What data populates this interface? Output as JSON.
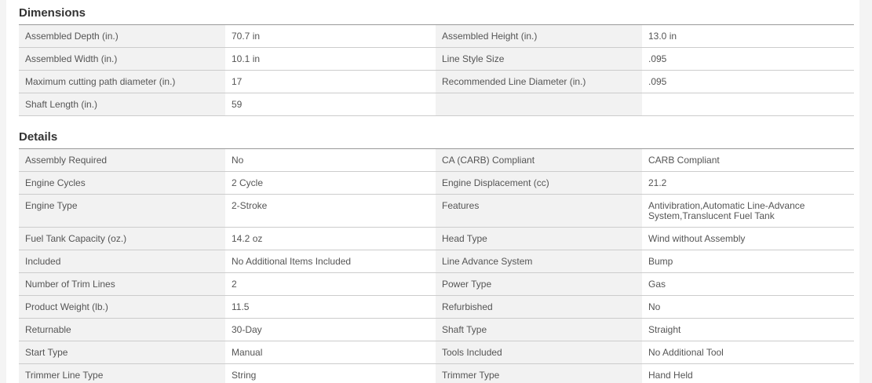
{
  "page": {
    "background_color": "#f4f4f4",
    "panel_color": "#ffffff",
    "table_top_border_color": "#999999",
    "row_border_color": "#cccccc",
    "label_cell_color": "#f2f2f2",
    "text_color": "#555555",
    "title_color": "#333333"
  },
  "sections": [
    {
      "title": "Dimensions",
      "rows": [
        {
          "left_label": "Assembled Depth (in.)",
          "left_value": "70.7 in",
          "right_label": "Assembled Height (in.)",
          "right_value": "13.0 in"
        },
        {
          "left_label": "Assembled Width (in.)",
          "left_value": "10.1 in",
          "right_label": "Line Style Size",
          "right_value": ".095"
        },
        {
          "left_label": "Maximum cutting path diameter (in.)",
          "left_value": "17",
          "right_label": "Recommended Line Diameter (in.)",
          "right_value": ".095"
        },
        {
          "left_label": "Shaft Length (in.)",
          "left_value": "59",
          "right_label": "",
          "right_value": ""
        }
      ]
    },
    {
      "title": "Details",
      "rows": [
        {
          "left_label": "Assembly Required",
          "left_value": "No",
          "right_label": "CA (CARB) Compliant",
          "right_value": "CARB Compliant"
        },
        {
          "left_label": "Engine Cycles",
          "left_value": "2 Cycle",
          "right_label": "Engine Displacement (cc)",
          "right_value": "21.2"
        },
        {
          "left_label": "Engine Type",
          "left_value": "2-Stroke",
          "right_label": "Features",
          "right_value": "Antivibration,Automatic Line-Advance System,Translucent Fuel Tank"
        },
        {
          "left_label": "Fuel Tank Capacity (oz.)",
          "left_value": "14.2 oz",
          "right_label": "Head Type",
          "right_value": "Wind without Assembly"
        },
        {
          "left_label": "Included",
          "left_value": "No Additional Items Included",
          "right_label": "Line Advance System",
          "right_value": "Bump"
        },
        {
          "left_label": "Number of Trim Lines",
          "left_value": "2",
          "right_label": "Power Type",
          "right_value": "Gas"
        },
        {
          "left_label": "Product Weight (lb.)",
          "left_value": "11.5",
          "right_label": "Refurbished",
          "right_value": "No"
        },
        {
          "left_label": "Returnable",
          "left_value": "30-Day",
          "right_label": "Shaft Type",
          "right_value": "Straight"
        },
        {
          "left_label": "Start Type",
          "left_value": "Manual",
          "right_label": "Tools Included",
          "right_value": "No Additional Tool"
        },
        {
          "left_label": "Trimmer Line Type",
          "left_value": "String",
          "right_label": "Trimmer Type",
          "right_value": "Hand Held"
        }
      ]
    }
  ]
}
